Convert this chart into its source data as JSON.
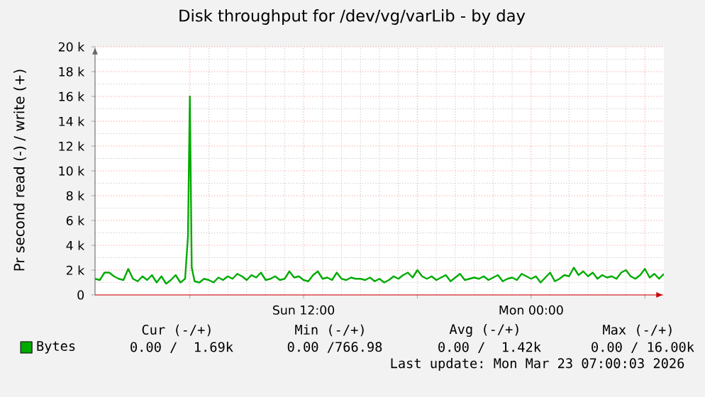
{
  "chart_data": {
    "type": "line",
    "title": "Disk throughput for /dev/vg/varLib - by day",
    "ylabel": "Pr second read (-) / write (+)",
    "xlim": [
      "2026-03-22T01:00",
      "2026-03-23T07:00"
    ],
    "ylim": [
      0,
      20000
    ],
    "xticks": [
      {
        "value": "2026-03-22T06:00",
        "label": null
      },
      {
        "value": "2026-03-22T12:00",
        "label": "Sun 12:00"
      },
      {
        "value": "2026-03-22T18:00",
        "label": null
      },
      {
        "value": "2026-03-23T00:00",
        "label": "Mon 00:00"
      },
      {
        "value": "2026-03-23T06:00",
        "label": null
      }
    ],
    "yticks": [
      0,
      {
        "value": 2000,
        "label": "2 k"
      },
      {
        "value": 4000,
        "label": "4 k"
      },
      {
        "value": 6000,
        "label": "6 k"
      },
      {
        "value": 8000,
        "label": "8 k"
      },
      {
        "value": 10000,
        "label": "10 k"
      },
      {
        "value": 12000,
        "label": "12 k"
      },
      {
        "value": 14000,
        "label": "14 k"
      },
      {
        "value": 16000,
        "label": "16 k"
      },
      {
        "value": 18000,
        "label": "18 k"
      },
      {
        "value": 20000,
        "label": "20 k"
      }
    ],
    "grid": true,
    "legend": "bottom",
    "series": [
      {
        "name": "Bytes",
        "color": "#00aa00",
        "x": [
          "2026-03-22T01:00",
          "2026-03-22T01:15",
          "2026-03-22T01:30",
          "2026-03-22T01:45",
          "2026-03-22T02:00",
          "2026-03-22T02:15",
          "2026-03-22T02:30",
          "2026-03-22T02:45",
          "2026-03-22T03:00",
          "2026-03-22T03:15",
          "2026-03-22T03:30",
          "2026-03-22T03:45",
          "2026-03-22T04:00",
          "2026-03-22T04:15",
          "2026-03-22T04:30",
          "2026-03-22T04:45",
          "2026-03-22T05:00",
          "2026-03-22T05:15",
          "2026-03-22T05:30",
          "2026-03-22T05:45",
          "2026-03-22T05:54",
          "2026-03-22T06:00",
          "2026-03-22T06:06",
          "2026-03-22T06:15",
          "2026-03-22T06:30",
          "2026-03-22T06:45",
          "2026-03-22T07:00",
          "2026-03-22T07:15",
          "2026-03-22T07:30",
          "2026-03-22T07:45",
          "2026-03-22T08:00",
          "2026-03-22T08:15",
          "2026-03-22T08:30",
          "2026-03-22T08:45",
          "2026-03-22T09:00",
          "2026-03-22T09:15",
          "2026-03-22T09:30",
          "2026-03-22T09:45",
          "2026-03-22T10:00",
          "2026-03-22T10:15",
          "2026-03-22T10:30",
          "2026-03-22T10:45",
          "2026-03-22T11:00",
          "2026-03-22T11:15",
          "2026-03-22T11:30",
          "2026-03-22T11:45",
          "2026-03-22T12:00",
          "2026-03-22T12:15",
          "2026-03-22T12:30",
          "2026-03-22T12:45",
          "2026-03-22T13:00",
          "2026-03-22T13:15",
          "2026-03-22T13:30",
          "2026-03-22T13:45",
          "2026-03-22T14:00",
          "2026-03-22T14:15",
          "2026-03-22T14:30",
          "2026-03-22T14:45",
          "2026-03-22T15:00",
          "2026-03-22T15:15",
          "2026-03-22T15:30",
          "2026-03-22T15:45",
          "2026-03-22T16:00",
          "2026-03-22T16:15",
          "2026-03-22T16:30",
          "2026-03-22T16:45",
          "2026-03-22T17:00",
          "2026-03-22T17:15",
          "2026-03-22T17:30",
          "2026-03-22T17:45",
          "2026-03-22T18:00",
          "2026-03-22T18:15",
          "2026-03-22T18:30",
          "2026-03-22T18:45",
          "2026-03-22T19:00",
          "2026-03-22T19:15",
          "2026-03-22T19:30",
          "2026-03-22T19:45",
          "2026-03-22T20:00",
          "2026-03-22T20:15",
          "2026-03-22T20:30",
          "2026-03-22T20:45",
          "2026-03-22T21:00",
          "2026-03-22T21:15",
          "2026-03-22T21:30",
          "2026-03-22T21:45",
          "2026-03-22T22:00",
          "2026-03-22T22:15",
          "2026-03-22T22:30",
          "2026-03-22T22:45",
          "2026-03-22T23:00",
          "2026-03-22T23:15",
          "2026-03-22T23:30",
          "2026-03-22T23:45",
          "2026-03-23T00:00",
          "2026-03-23T00:15",
          "2026-03-23T00:30",
          "2026-03-23T00:45",
          "2026-03-23T01:00",
          "2026-03-23T01:15",
          "2026-03-23T01:30",
          "2026-03-23T01:45",
          "2026-03-23T02:00",
          "2026-03-23T02:15",
          "2026-03-23T02:30",
          "2026-03-23T02:45",
          "2026-03-23T03:00",
          "2026-03-23T03:15",
          "2026-03-23T03:30",
          "2026-03-23T03:45",
          "2026-03-23T04:00",
          "2026-03-23T04:15",
          "2026-03-23T04:30",
          "2026-03-23T04:45",
          "2026-03-23T05:00",
          "2026-03-23T05:15",
          "2026-03-23T05:30",
          "2026-03-23T05:45",
          "2026-03-23T06:00",
          "2026-03-23T06:15",
          "2026-03-23T06:30",
          "2026-03-23T06:45",
          "2026-03-23T07:00"
        ],
        "values": [
          1300,
          1200,
          1800,
          1800,
          1500,
          1300,
          1200,
          2100,
          1300,
          1100,
          1500,
          1200,
          1600,
          1000,
          1500,
          900,
          1200,
          1600,
          1000,
          1300,
          4700,
          16000,
          2200,
          1100,
          1000,
          1300,
          1200,
          1000,
          1400,
          1200,
          1500,
          1300,
          1700,
          1500,
          1200,
          1600,
          1400,
          1800,
          1200,
          1300,
          1500,
          1200,
          1300,
          1900,
          1400,
          1500,
          1200,
          1100,
          1600,
          1900,
          1300,
          1400,
          1200,
          1800,
          1300,
          1200,
          1400,
          1300,
          1300,
          1200,
          1400,
          1100,
          1300,
          1000,
          1200,
          1500,
          1300,
          1600,
          1800,
          1400,
          2000,
          1500,
          1300,
          1500,
          1200,
          1400,
          1600,
          1100,
          1400,
          1700,
          1200,
          1300,
          1400,
          1300,
          1500,
          1200,
          1400,
          1600,
          1100,
          1300,
          1400,
          1200,
          1700,
          1500,
          1300,
          1500,
          1000,
          1400,
          1800,
          1100,
          1300,
          1600,
          1500,
          2200,
          1600,
          1900,
          1500,
          1800,
          1300,
          1600,
          1400,
          1500,
          1300,
          1800,
          2000,
          1500,
          1300,
          1600,
          2100,
          1400,
          1700,
          1300,
          1700
        ]
      }
    ],
    "annotations": [
      "Cur (-/+)",
      "Min (-/+)",
      "Avg (-/+)",
      "Max (-/+)",
      "0.00 /  1.69k",
      "0.00 /766.98",
      "0.00 /  1.42k",
      "0.00 / 16.00k",
      "Last update: Mon Mar 23 07:00:03 2026"
    ]
  }
}
